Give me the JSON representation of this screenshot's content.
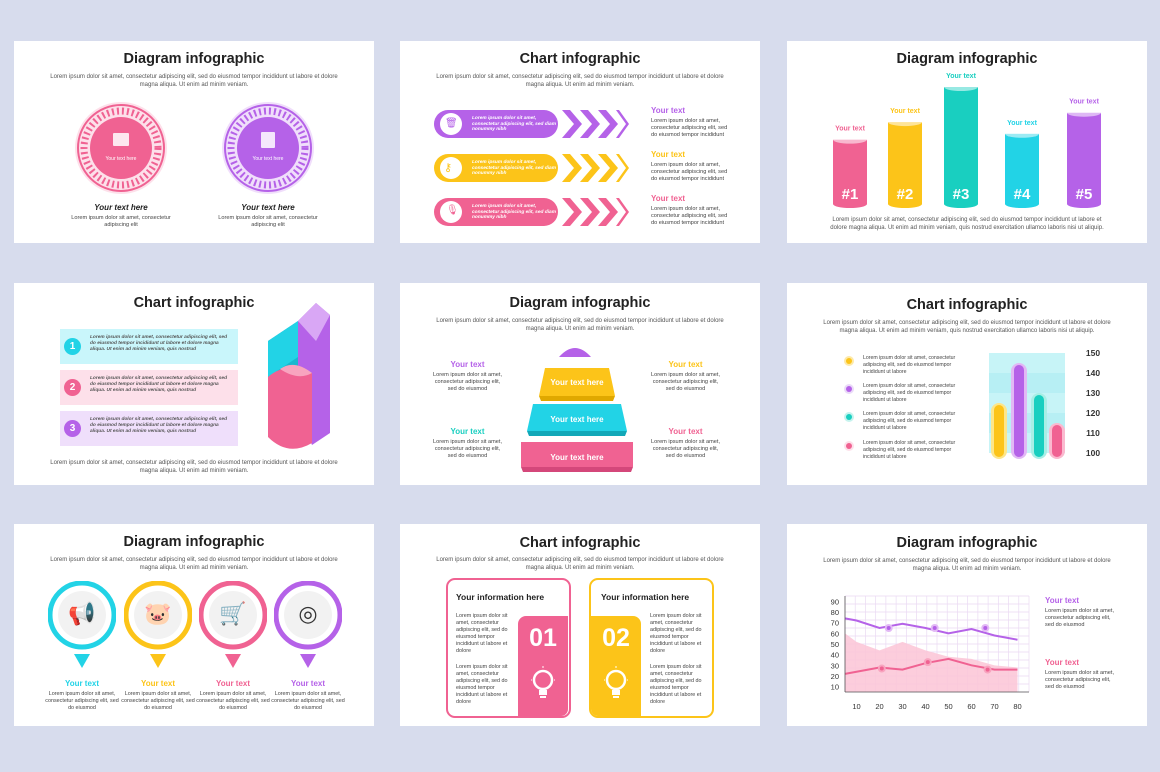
{
  "lorem_long": "Lorem ipsum dolor sit amet, consectetur adipiscing elit, sed do eiusmod tempor incididunt ut labore et dolore magna aliqua. Ut enim ad minim veniam.",
  "lorem_short": "Lorem ipsum dolor sit amet, consectetur adipiscing elit",
  "lorem_small": "Lorem ipsum dolor sit amet, consectetur adipiscing elit, sed do eiusmod tempor incididunt ut labore",
  "lorem_quis": "Lorem ipsum dolor sit amet, consectetur adipiscing elit, sed do eiusmod tempor incididunt ut labore et dolore magna aliqua. Ut enim ad minim veniam, quis nostrud exercitation ullamco laboris nisi ut aliquip.",
  "colors": {
    "pink": "#f06292",
    "purple": "#b562e8",
    "yellow": "#fcc419",
    "teal": "#19cfc0",
    "cyan": "#22d3e6",
    "bg": "#d7dced"
  },
  "slide1": {
    "title": "Diagram infographic",
    "circle_label": "Your text here",
    "caption_title": "Your text here",
    "caption_text": "Lorem ipsum dolor sit amet, consectetur adipiscing elit"
  },
  "slide2": {
    "title": "Chart infographic",
    "rows": [
      {
        "icon": "trash-icon",
        "text": "Lorem ipsum dolor sit amet, consectetur adipiscing elit, sed diam nonummy nibh",
        "label": "Your text"
      },
      {
        "icon": "key-icon",
        "text": "Lorem ipsum dolor sit amet, consectetur adipiscing elit, sed diam nonummy nibh",
        "label": "Your text"
      },
      {
        "icon": "microphone-icon",
        "text": "Lorem ipsum dolor sit amet, consectetur adipiscing elit, sed diam nonummy nibh",
        "label": "Your text"
      }
    ],
    "side_text": "Lorem ipsum dolor sit amet, consectetur adipiscing elit, sed do eiusmod tempor incididunt"
  },
  "slide3": {
    "title": "Diagram infographic",
    "chart_data": {
      "type": "bar",
      "categories": [
        "#1",
        "#2",
        "#3",
        "#4",
        "#5"
      ],
      "values": [
        55,
        70,
        100,
        60,
        78
      ],
      "labels": [
        "Your text",
        "Your text",
        "Your text",
        "Your text",
        "Your text"
      ]
    }
  },
  "slide4": {
    "title": "Chart infographic",
    "items": [
      {
        "num": "1",
        "text": "Lorem ipsum dolor sit amet, consectetur adipiscing elit, sed do eiusmod tempor incididunt ut labore et dolore magna aliqua. Ut enim ad minim veniam, quis nostrud"
      },
      {
        "num": "2",
        "text": "Lorem ipsum dolor sit amet, consectetur adipiscing elit, sed do eiusmod tempor incididunt ut labore et dolore magna aliqua. Ut enim ad minim veniam, quis nostrud"
      },
      {
        "num": "3",
        "text": "Lorem ipsum dolor sit amet, consectetur adipiscing elit, sed do eiusmod tempor incididunt ut labore et dolore magna aliqua. Ut enim ad minim veniam, quis nostrud"
      }
    ]
  },
  "slide5": {
    "title": "Diagram infographic",
    "tiers": [
      "Your text here",
      "Your text here",
      "Your text here"
    ],
    "label": "Your text",
    "side_text": "Lorem ipsum dolor sit amet, consectetur adipiscing elit, sed do eiusmod"
  },
  "slide6": {
    "title": "Chart infographic",
    "items": [
      "Lorem ipsum dolor sit amet, consectetur adipiscing elit, sed do eiusmod tempor incididunt ut labore",
      "Lorem ipsum dolor sit amet, consectetur adipiscing elit, sed do eiusmod tempor incididunt ut labore",
      "Lorem ipsum dolor sit amet, consectetur adipiscing elit, sed do eiusmod tempor incididunt ut labore",
      "Lorem ipsum dolor sit amet, consectetur adipiscing elit, sed do eiusmod tempor incididunt ut labore"
    ],
    "chart_data": {
      "type": "bar",
      "ticks": [
        150,
        140,
        130,
        120,
        110,
        100
      ],
      "values": [
        125,
        145,
        130,
        115
      ],
      "ylim": [
        100,
        150
      ]
    }
  },
  "slide7": {
    "title": "Diagram infographic",
    "items": [
      {
        "icon": "megaphone-icon",
        "label": "Your text"
      },
      {
        "icon": "piggy-bank-icon",
        "label": "Your text"
      },
      {
        "icon": "shopping-cart-icon",
        "label": "Your text"
      },
      {
        "icon": "target-icon",
        "label": "Your text"
      }
    ],
    "side_text": "Lorem ipsum dolor sit amet, consectetur adipiscing elit, sed do eiusmod"
  },
  "slide8": {
    "title": "Chart infographic",
    "cards": [
      {
        "heading": "Your information here",
        "num": "01",
        "icon": "lightbulb-icon"
      },
      {
        "heading": "Your information here",
        "num": "02",
        "icon": "lightbulb-icon"
      }
    ],
    "card_text": "Lorem ipsum dolor sit amet, consectetur adipiscing elit, sed do eiusmod tempor incididunt ut labore et dolore"
  },
  "slide9": {
    "title": "Diagram infographic",
    "label": "Your text",
    "side_text": "Lorem ipsum dolor sit amet, consectetur adipiscing elit, sed do eiusmod",
    "chart_data": {
      "type": "line",
      "x_ticks": [
        10,
        20,
        30,
        40,
        50,
        60,
        70,
        80
      ],
      "y_ticks": [
        90,
        80,
        70,
        60,
        50,
        40,
        30,
        20,
        10
      ],
      "xlim": [
        5,
        85
      ],
      "ylim": [
        5,
        95
      ],
      "series": [
        {
          "x": [
            5,
            10,
            20,
            30,
            40,
            50,
            60,
            70,
            80
          ],
          "y": [
            74,
            72,
            65,
            69,
            65,
            60,
            64,
            58,
            54
          ]
        },
        {
          "x": [
            5,
            10,
            20,
            30,
            40,
            50,
            60,
            70,
            80
          ],
          "y": [
            22,
            24,
            28,
            26,
            32,
            36,
            30,
            26,
            26
          ]
        }
      ],
      "points": [
        {
          "x": [
            24,
            44,
            66
          ],
          "y": [
            65,
            65,
            65
          ]
        },
        {
          "x": [
            21,
            41,
            67
          ],
          "y": [
            27,
            33,
            26
          ]
        }
      ]
    }
  }
}
